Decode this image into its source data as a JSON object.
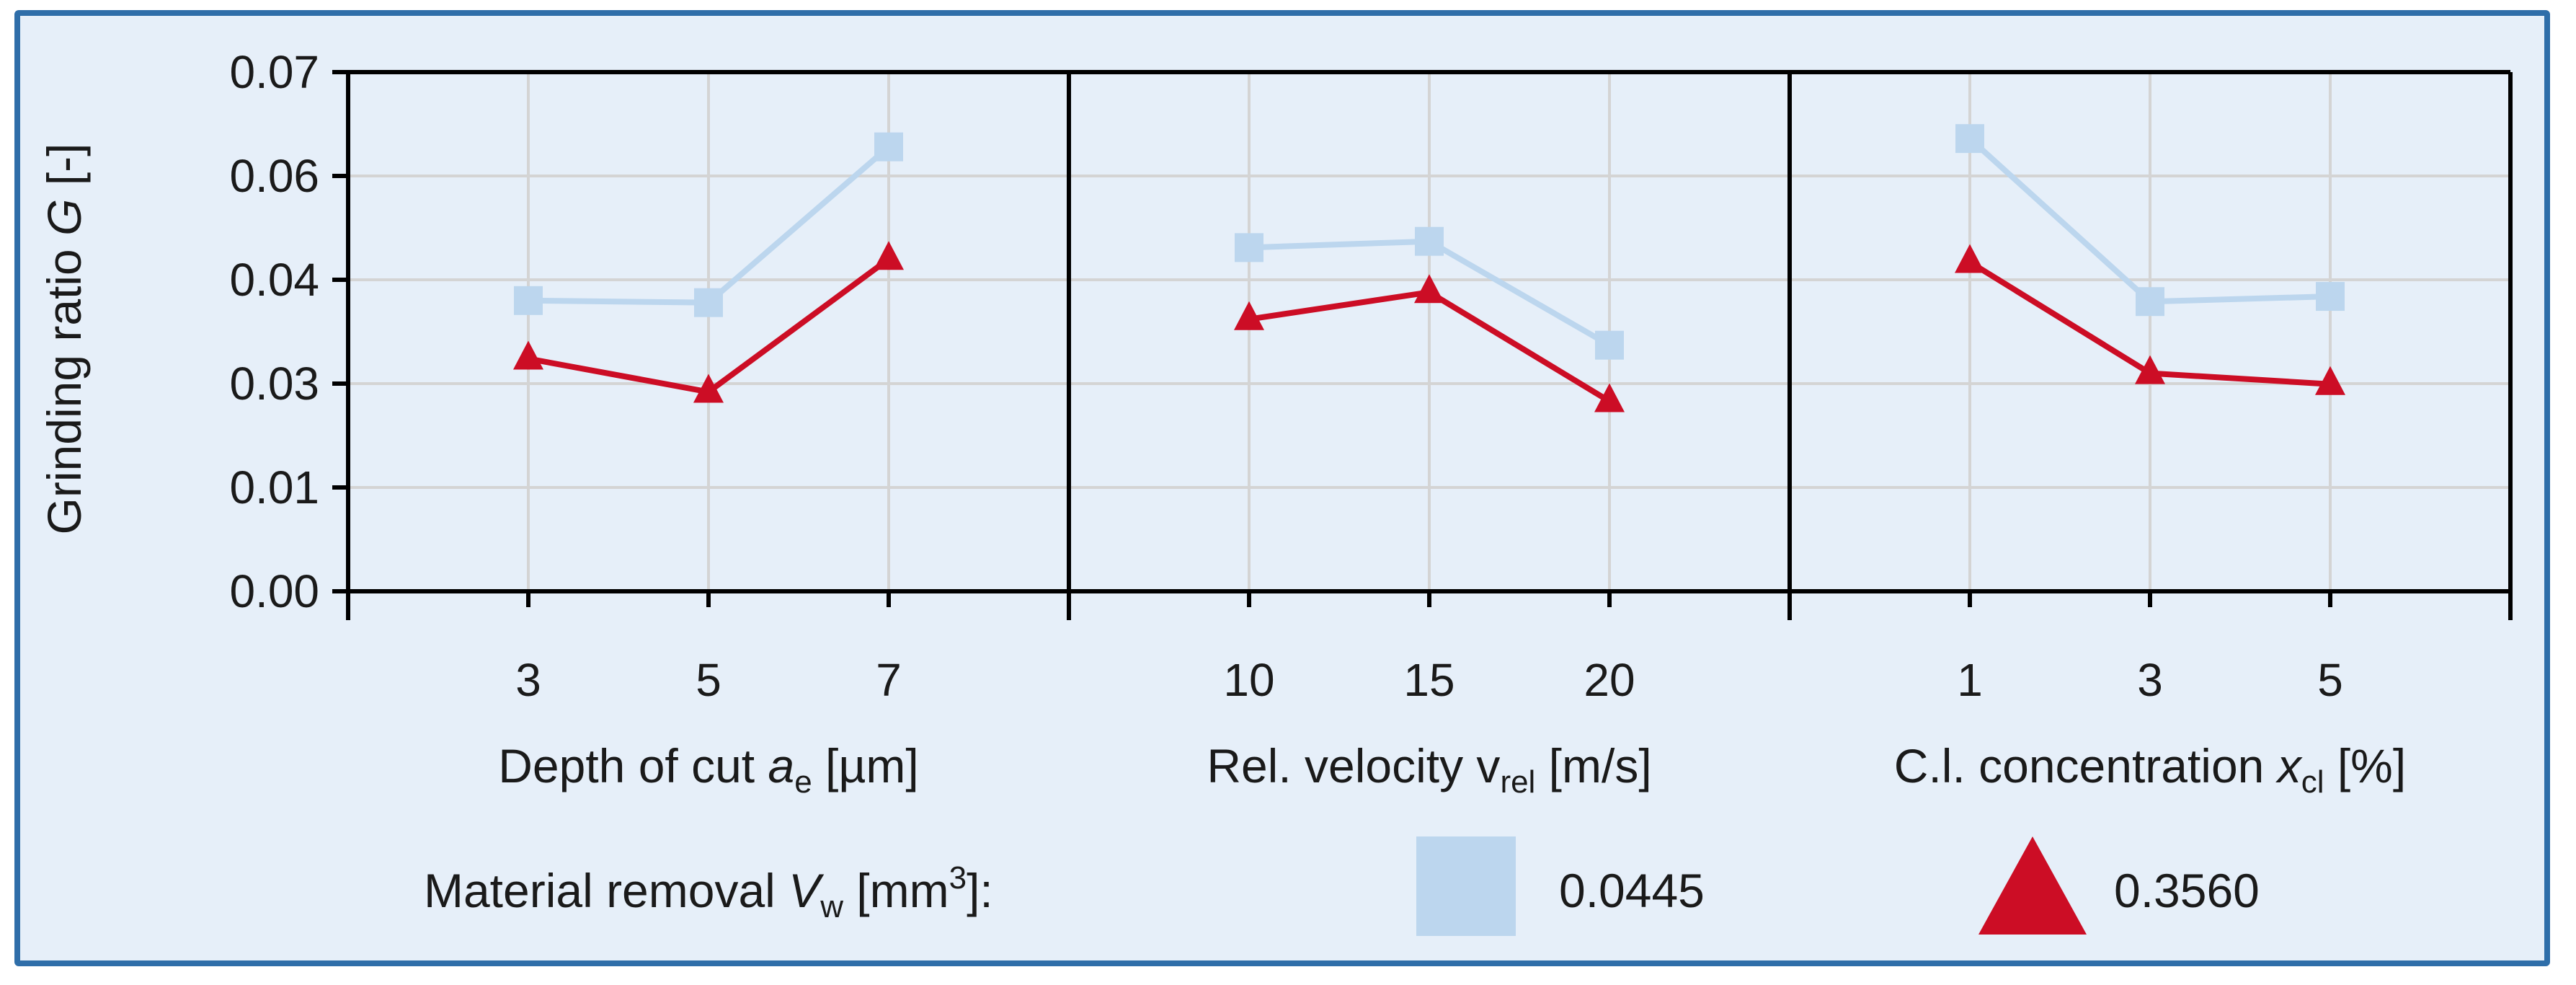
{
  "chart_data": {
    "type": "line",
    "y_axis": {
      "label_prefix": "Grinding ratio ",
      "label_var": "G",
      "label_suffix": " [-]",
      "ticks": [
        "0.00",
        "0.01",
        "0.03",
        "0.04",
        "0.06",
        "0.07"
      ],
      "tick_values": [
        0,
        1,
        2,
        3,
        4,
        5
      ]
    },
    "legend": {
      "label_prefix": "Material removal ",
      "label_var": "V",
      "label_sub": "w",
      "label_unit_open": " [mm",
      "label_sup": "3",
      "label_unit_close": "]:"
    },
    "series": [
      {
        "name": "0.0445",
        "marker": "square",
        "color": "#bcd6ee"
      },
      {
        "name": "0.3560",
        "marker": "triangle",
        "color": "#cc0d25"
      }
    ],
    "panels": [
      {
        "xlabel_prefix": "Depth of cut ",
        "xlabel_var": "a",
        "xlabel_sub": "e",
        "xlabel_suffix": " [µm]",
        "categories": [
          "3",
          "5",
          "7"
        ],
        "values": {
          "0.0445": [
            0.038,
            0.0378,
            0.0628
          ],
          "0.3560": [
            0.0324,
            0.0284,
            0.044
          ]
        }
      },
      {
        "xlabel_prefix": "Rel. velocity v",
        "xlabel_var": "",
        "xlabel_sub": "rel",
        "xlabel_suffix": " [m/s]",
        "categories": [
          "10",
          "15",
          "20"
        ],
        "values": {
          "0.0445": [
            0.0462,
            0.0474,
            0.0337
          ],
          "0.3560": [
            0.0362,
            0.0388,
            0.0266
          ]
        }
      },
      {
        "xlabel_prefix": "C.l. concentration ",
        "xlabel_var": "x",
        "xlabel_sub": "cl",
        "xlabel_suffix": " [%]",
        "categories": [
          "1",
          "3",
          "5"
        ],
        "values": {
          "0.0445": [
            0.0636,
            0.0379,
            0.0384
          ],
          "0.3560": [
            0.0434,
            0.031,
            0.0299
          ]
        }
      }
    ]
  }
}
